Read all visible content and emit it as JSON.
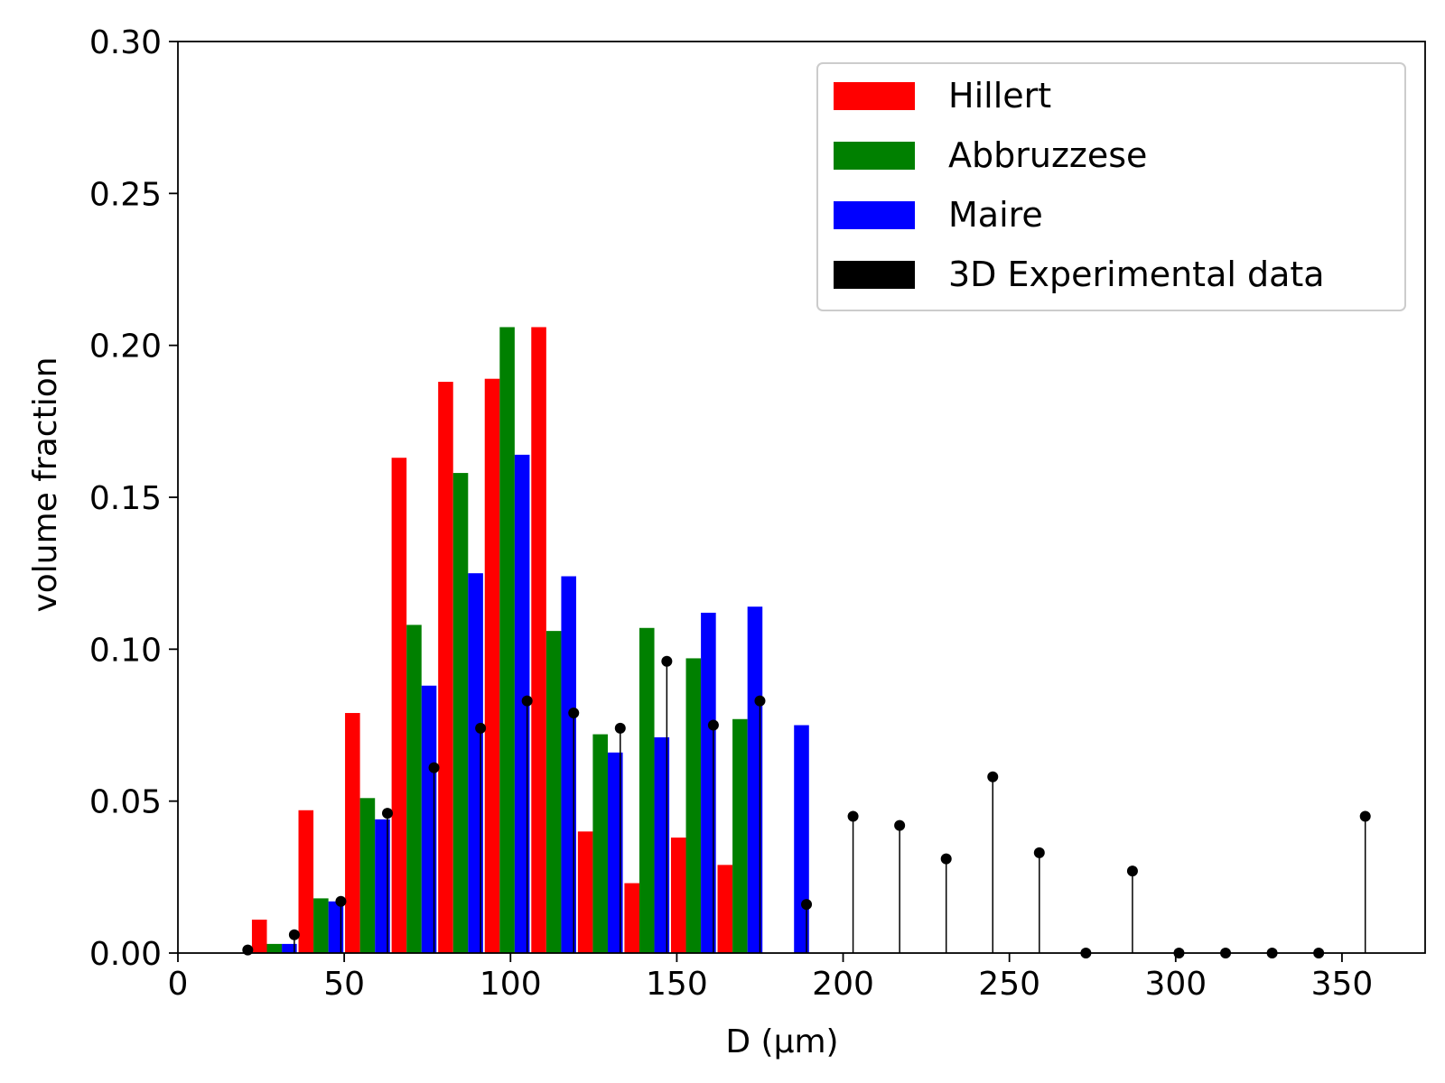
{
  "chart_data": {
    "type": "bar",
    "xlabel": "D (μm)",
    "ylabel": "volume fraction",
    "xlim": [
      0,
      375
    ],
    "ylim": [
      0,
      0.3
    ],
    "xticks": [
      "0",
      "50",
      "100",
      "150",
      "200",
      "250",
      "300",
      "350"
    ],
    "xtick_values": [
      0,
      50,
      100,
      150,
      200,
      250,
      300,
      350
    ],
    "yticks": [
      "0.00",
      "0.05",
      "0.10",
      "0.15",
      "0.20",
      "0.25",
      "0.30"
    ],
    "ytick_values": [
      0,
      0.05,
      0.1,
      0.15,
      0.2,
      0.25,
      0.3
    ],
    "grid": false,
    "legend_position": "top-right",
    "bar_width_um": 4.5,
    "series": [
      {
        "name": "Hillert",
        "color": "#ff0000",
        "kind": "bar",
        "x": [
          24.5,
          38.5,
          52.5,
          66.5,
          80.5,
          94.5,
          108.5,
          122.5,
          136.5,
          150.5,
          164.5
        ],
        "values": [
          0.011,
          0.047,
          0.079,
          0.163,
          0.188,
          0.189,
          0.206,
          0.04,
          0.023,
          0.038,
          0.029
        ]
      },
      {
        "name": "Abbruzzese",
        "color": "#008000",
        "kind": "bar",
        "x": [
          29,
          43,
          57,
          71,
          85,
          99,
          113,
          127,
          141,
          155,
          169
        ],
        "values": [
          0.003,
          0.018,
          0.051,
          0.108,
          0.158,
          0.206,
          0.106,
          0.072,
          0.107,
          0.097,
          0.077
        ]
      },
      {
        "name": "Maire",
        "color": "#0000ff",
        "kind": "bar",
        "x": [
          33.5,
          47.5,
          61.5,
          75.5,
          89.5,
          103.5,
          117.5,
          131.5,
          145.5,
          159.5,
          173.5,
          187.5
        ],
        "values": [
          0.003,
          0.017,
          0.044,
          0.088,
          0.125,
          0.164,
          0.124,
          0.066,
          0.071,
          0.112,
          0.114,
          0.075
        ]
      },
      {
        "name": "3D Experimental data",
        "color": "#000000",
        "kind": "stem",
        "x": [
          21,
          35,
          49,
          63,
          77,
          91,
          105,
          119,
          133,
          147,
          161,
          175,
          189,
          203,
          217,
          231,
          245,
          259,
          273,
          287,
          301,
          315,
          329,
          343,
          357
        ],
        "values": [
          0.001,
          0.006,
          0.017,
          0.046,
          0.061,
          0.074,
          0.083,
          0.079,
          0.074,
          0.096,
          0.075,
          0.083,
          0.016,
          0.045,
          0.042,
          0.031,
          0.058,
          0.033,
          0.0,
          0.027,
          0.0,
          0.0,
          0.0,
          0.0,
          0.045
        ]
      }
    ]
  }
}
